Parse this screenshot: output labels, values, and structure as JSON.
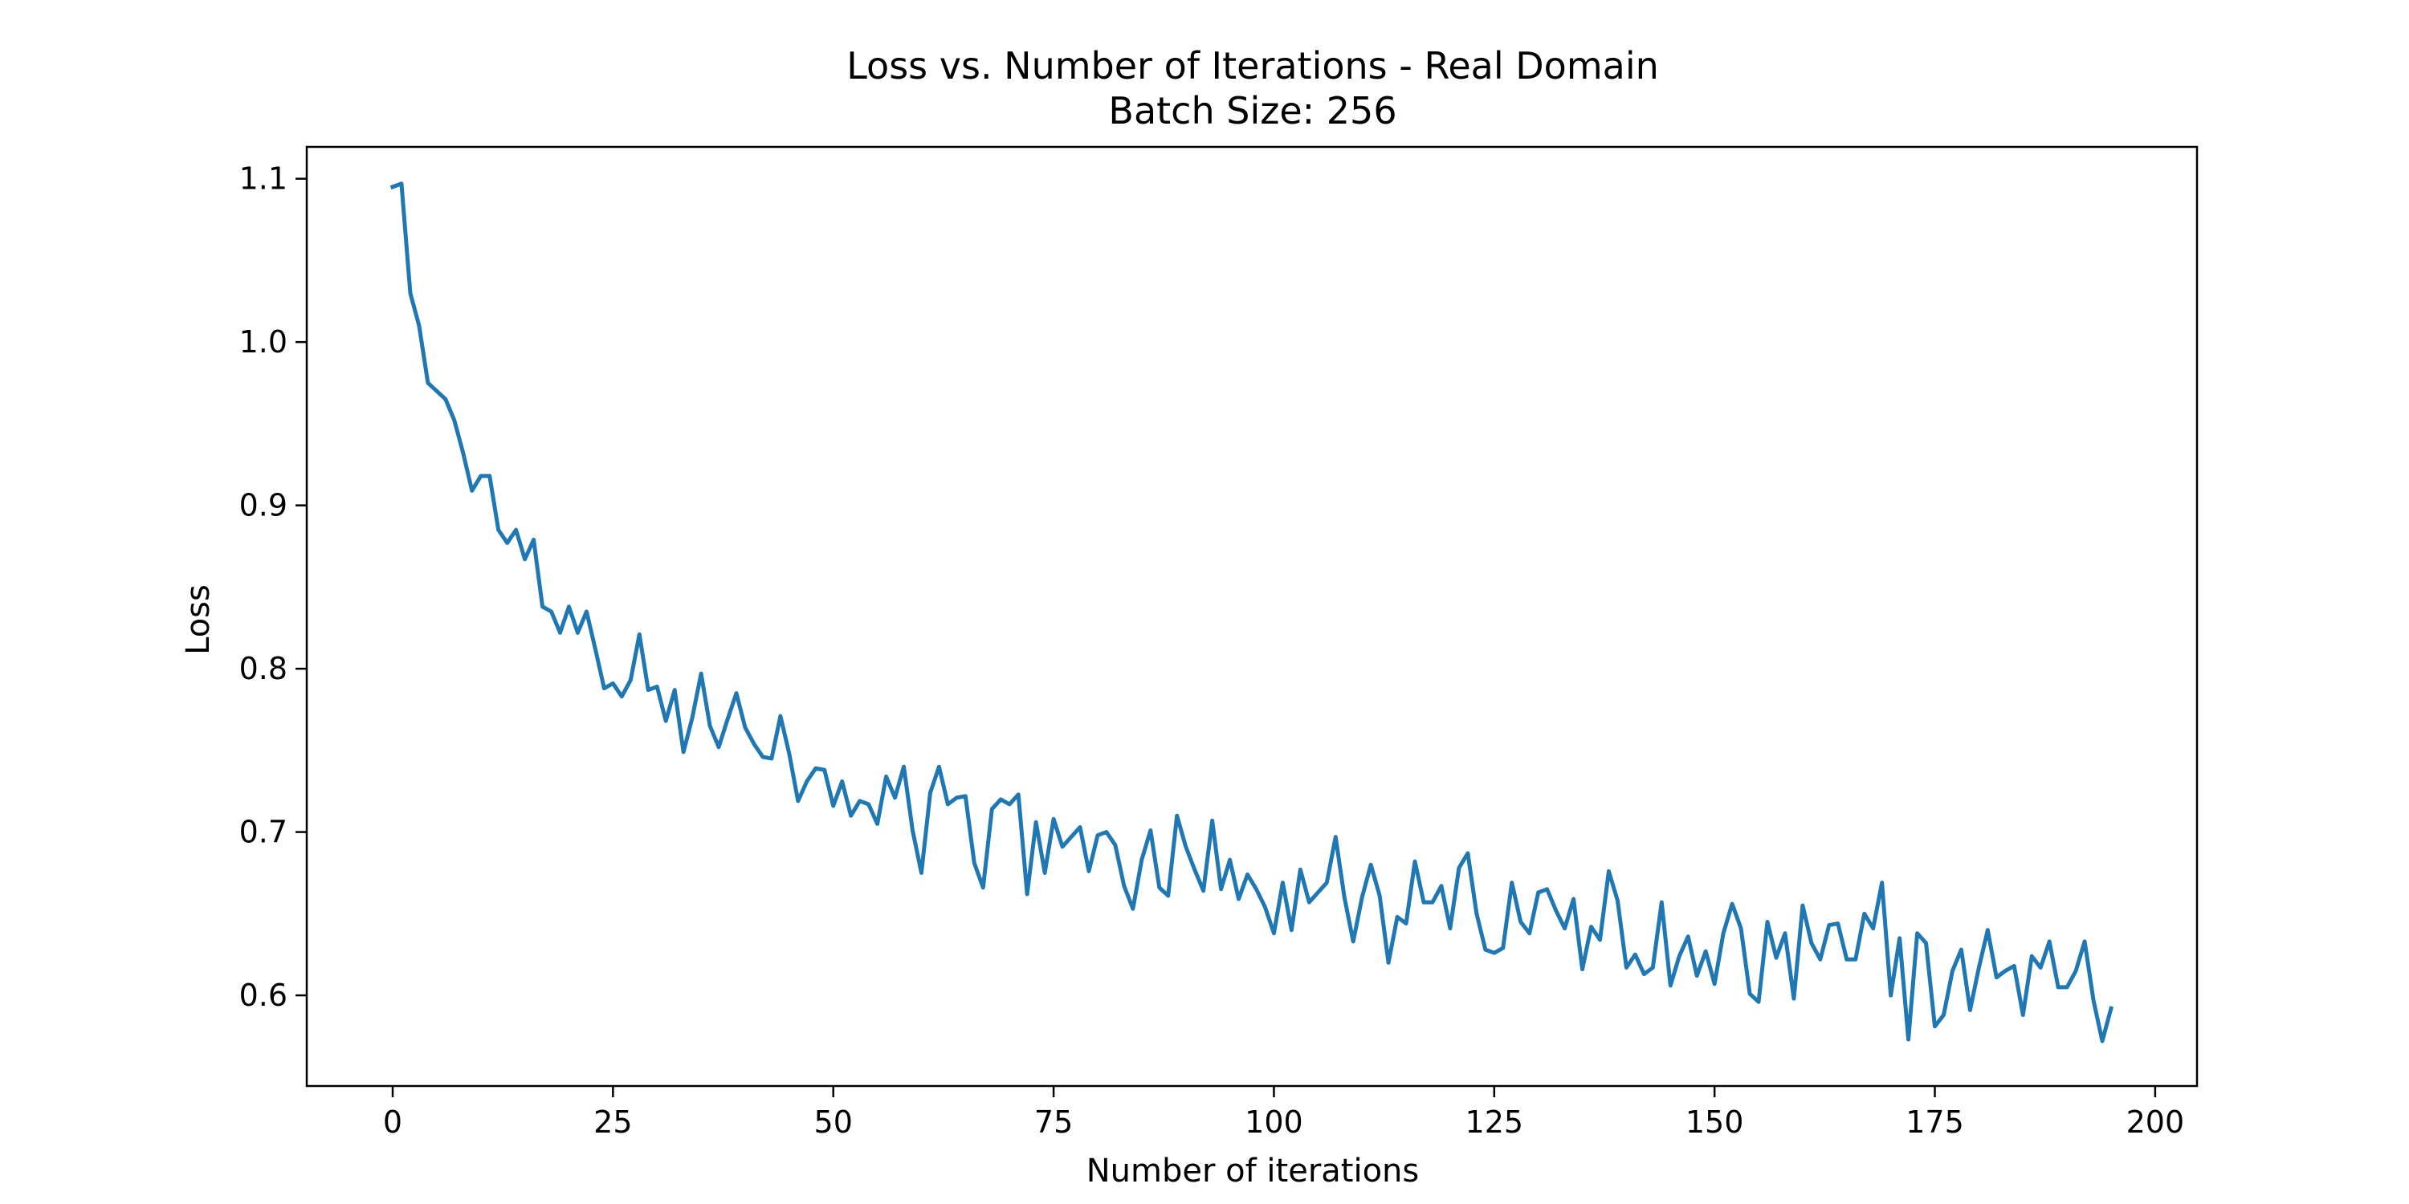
{
  "chart_data": {
    "type": "line",
    "title": "Loss vs. Number of Iterations - Real Domain",
    "subtitle": "Batch Size: 256",
    "xlabel": "Number of iterations",
    "ylabel": "Loss",
    "xlim": [
      -9.75,
      204.75
    ],
    "ylim": [
      0.5445,
      1.1195
    ],
    "xticks": [
      0,
      25,
      50,
      75,
      100,
      125,
      150,
      175,
      200
    ],
    "xtick_labels": [
      "0",
      "25",
      "50",
      "75",
      "100",
      "125",
      "150",
      "175",
      "200"
    ],
    "yticks": [
      0.6,
      0.7,
      0.8,
      0.9,
      1.0,
      1.1
    ],
    "ytick_labels": [
      "0.6",
      "0.7",
      "0.8",
      "0.9",
      "1.0",
      "1.1"
    ],
    "grid": false,
    "series": [
      {
        "color": "#1f77b4",
        "values": [
          1.095,
          1.097,
          1.03,
          1.01,
          0.975,
          0.97,
          0.965,
          0.952,
          0.932,
          0.909,
          0.918,
          0.918,
          0.885,
          0.877,
          0.885,
          0.867,
          0.879,
          0.838,
          0.835,
          0.822,
          0.838,
          0.822,
          0.835,
          0.812,
          0.788,
          0.791,
          0.783,
          0.793,
          0.821,
          0.787,
          0.789,
          0.768,
          0.787,
          0.749,
          0.77,
          0.797,
          0.765,
          0.752,
          0.769,
          0.785,
          0.764,
          0.754,
          0.746,
          0.745,
          0.771,
          0.748,
          0.719,
          0.731,
          0.739,
          0.738,
          0.716,
          0.731,
          0.71,
          0.719,
          0.717,
          0.705,
          0.734,
          0.721,
          0.74,
          0.701,
          0.675,
          0.724,
          0.74,
          0.717,
          0.721,
          0.722,
          0.681,
          0.666,
          0.714,
          0.72,
          0.717,
          0.723,
          0.662,
          0.706,
          0.675,
          0.708,
          0.691,
          0.697,
          0.703,
          0.676,
          0.698,
          0.7,
          0.692,
          0.667,
          0.653,
          0.683,
          0.701,
          0.666,
          0.661,
          0.71,
          0.691,
          0.677,
          0.664,
          0.707,
          0.665,
          0.683,
          0.659,
          0.674,
          0.665,
          0.654,
          0.638,
          0.669,
          0.64,
          0.677,
          0.657,
          0.663,
          0.669,
          0.697,
          0.66,
          0.633,
          0.66,
          0.68,
          0.661,
          0.62,
          0.648,
          0.644,
          0.682,
          0.657,
          0.657,
          0.667,
          0.641,
          0.678,
          0.687,
          0.65,
          0.628,
          0.626,
          0.629,
          0.669,
          0.645,
          0.638,
          0.663,
          0.665,
          0.652,
          0.641,
          0.659,
          0.616,
          0.642,
          0.634,
          0.676,
          0.658,
          0.617,
          0.625,
          0.613,
          0.617,
          0.657,
          0.606,
          0.624,
          0.636,
          0.612,
          0.627,
          0.607,
          0.638,
          0.656,
          0.641,
          0.601,
          0.596,
          0.645,
          0.623,
          0.638,
          0.598,
          0.655,
          0.632,
          0.622,
          0.643,
          0.644,
          0.622,
          0.622,
          0.65,
          0.641,
          0.669,
          0.6,
          0.635,
          0.573,
          0.638,
          0.632,
          0.581,
          0.588,
          0.615,
          0.628,
          0.591,
          0.617,
          0.64,
          0.611,
          0.615,
          0.618,
          0.588,
          0.624,
          0.617,
          0.633,
          0.605,
          0.605,
          0.615,
          0.633,
          0.597,
          0.572,
          0.592
        ]
      }
    ]
  }
}
